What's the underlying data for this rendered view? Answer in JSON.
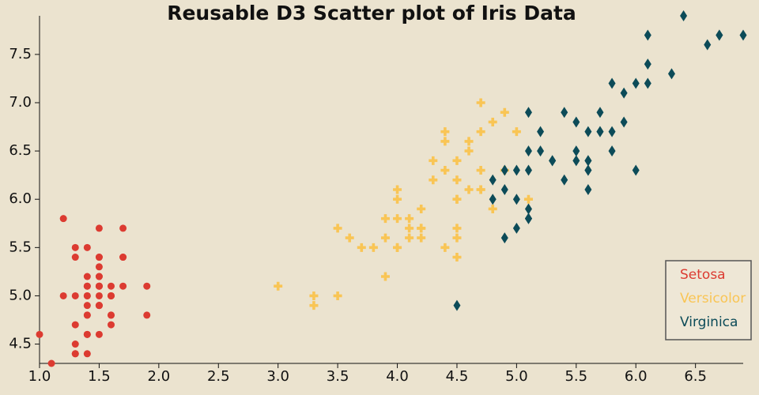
{
  "chart_data": {
    "type": "scatter",
    "title": "Reusable D3 Scatter plot of Iris Data",
    "xlim": [
      1.0,
      6.9
    ],
    "ylim": [
      4.3,
      7.9
    ],
    "xticks": [
      {
        "value": 1,
        "label": "1.0"
      },
      1.5,
      {
        "value": 2,
        "label": "2.0"
      },
      2.5,
      {
        "value": 3,
        "label": "3.0"
      },
      3.5,
      {
        "value": 4,
        "label": "4.0"
      },
      4.5,
      {
        "value": 5,
        "label": "5.0"
      },
      5.5,
      {
        "value": 6,
        "label": "6.0"
      },
      6.5
    ],
    "yticks": [
      4.5,
      {
        "value": 5,
        "label": "5.0"
      },
      5.5,
      {
        "value": 6,
        "label": "6.0"
      },
      6.5,
      {
        "value": 7,
        "label": "7.0"
      },
      7.5
    ],
    "legend": "lower right",
    "series": [
      {
        "name": "Setosa",
        "color": "#dc3b31",
        "marker": "circle",
        "x": [
          1.4,
          1.4,
          1.3,
          1.5,
          1.4,
          1.7,
          1.4,
          1.5,
          1.4,
          1.5,
          1.5,
          1.6,
          1.4,
          1.1,
          1.2,
          1.5,
          1.3,
          1.4,
          1.7,
          1.5,
          1.7,
          1.5,
          1.0,
          1.7,
          1.9,
          1.6,
          1.6,
          1.5,
          1.4,
          1.6,
          1.6,
          1.5,
          1.5,
          1.4,
          1.5,
          1.2,
          1.3,
          1.5,
          1.3,
          1.5,
          1.3,
          1.3,
          1.3,
          1.6,
          1.9,
          1.4,
          1.6,
          1.4,
          1.5,
          1.4
        ],
        "values": [
          5.1,
          4.9,
          4.7,
          4.6,
          5.0,
          5.4,
          4.6,
          5.0,
          4.4,
          4.9,
          5.4,
          4.8,
          4.8,
          4.3,
          5.8,
          5.7,
          5.4,
          5.1,
          5.7,
          5.1,
          5.4,
          5.1,
          4.6,
          5.1,
          4.8,
          5.0,
          5.0,
          5.2,
          5.2,
          4.7,
          4.8,
          5.4,
          5.2,
          5.5,
          4.9,
          5.0,
          5.5,
          4.9,
          4.4,
          5.1,
          5.0,
          4.5,
          4.4,
          5.0,
          5.1,
          4.8,
          5.1,
          4.6,
          5.3,
          5.0
        ]
      },
      {
        "name": "Versicolor",
        "color": "#f9c555",
        "marker": "cross",
        "x": [
          4.7,
          4.5,
          4.9,
          4.0,
          4.6,
          4.5,
          4.7,
          3.3,
          4.6,
          3.9,
          3.5,
          4.2,
          4.0,
          4.7,
          3.6,
          4.4,
          4.5,
          4.1,
          4.5,
          3.9,
          4.8,
          4.0,
          4.9,
          4.7,
          4.3,
          4.4,
          4.8,
          5.0,
          4.5,
          3.5,
          3.8,
          3.7,
          3.9,
          5.1,
          4.5,
          4.5,
          4.7,
          4.4,
          4.1,
          4.0,
          4.4,
          4.6,
          4.0,
          3.3,
          4.2,
          4.2,
          4.2,
          4.3,
          3.0,
          4.1
        ],
        "values": [
          7.0,
          6.4,
          6.9,
          5.5,
          6.5,
          5.7,
          6.3,
          4.9,
          6.6,
          5.2,
          5.0,
          5.9,
          6.0,
          6.1,
          5.6,
          6.7,
          5.6,
          5.8,
          6.2,
          5.6,
          5.9,
          6.1,
          6.3,
          6.1,
          6.4,
          6.6,
          6.8,
          6.7,
          6.0,
          5.7,
          5.5,
          5.5,
          5.8,
          6.0,
          5.4,
          6.0,
          6.7,
          6.3,
          5.6,
          5.5,
          5.5,
          6.1,
          5.8,
          5.0,
          5.6,
          5.7,
          5.7,
          6.2,
          5.1,
          5.7
        ]
      },
      {
        "name": "Virginica",
        "color": "#0c4b58",
        "marker": "diamond",
        "x": [
          6.0,
          5.1,
          5.9,
          5.6,
          5.8,
          6.6,
          4.5,
          6.3,
          5.8,
          6.1,
          5.1,
          5.3,
          5.5,
          5.0,
          5.1,
          5.3,
          5.5,
          6.7,
          6.9,
          5.0,
          5.7,
          4.9,
          6.7,
          4.9,
          5.7,
          6.0,
          4.8,
          4.9,
          5.6,
          5.8,
          6.1,
          6.4,
          5.6,
          5.1,
          5.6,
          6.1,
          5.6,
          5.5,
          4.8,
          5.4,
          5.6,
          5.1,
          5.1,
          5.9,
          5.7,
          5.2,
          5.0,
          5.2,
          5.4,
          5.1
        ],
        "values": [
          6.3,
          5.8,
          7.1,
          6.3,
          6.5,
          7.6,
          4.9,
          7.3,
          6.7,
          7.2,
          6.5,
          6.4,
          6.8,
          5.7,
          5.8,
          6.4,
          6.5,
          7.7,
          7.7,
          6.0,
          6.9,
          5.6,
          7.7,
          6.3,
          6.7,
          7.2,
          6.2,
          6.1,
          6.4,
          7.2,
          7.4,
          7.9,
          6.4,
          6.3,
          6.1,
          7.7,
          6.3,
          6.4,
          6.0,
          6.9,
          6.7,
          6.9,
          5.8,
          6.8,
          6.7,
          6.7,
          6.3,
          6.5,
          6.2,
          5.9
        ]
      }
    ]
  }
}
